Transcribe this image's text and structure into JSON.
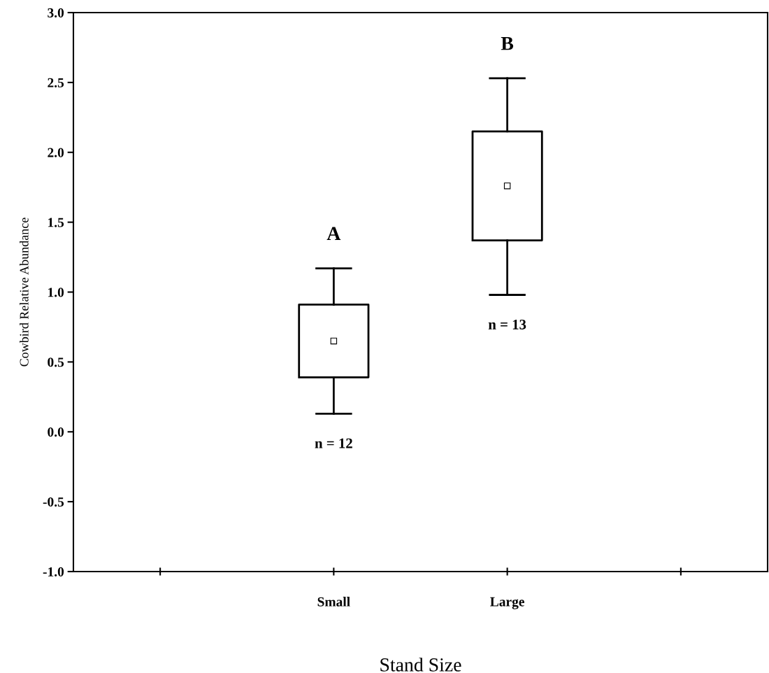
{
  "chart_data": {
    "type": "box",
    "xlabel": "Stand Size",
    "ylabel": "Cowbird Relative Abundance",
    "categories": [
      null,
      "Small",
      "Large",
      null
    ],
    "boxes": [
      null,
      {
        "low": 0.13,
        "q1": 0.39,
        "median": 0.65,
        "q3": 0.91,
        "high": 1.17
      },
      {
        "low": 0.98,
        "q1": 1.37,
        "median": 1.76,
        "q3": 2.15,
        "high": 2.53
      },
      null
    ],
    "ylim": [
      -1.0,
      3.0
    ],
    "yticks": [
      {
        "value": -1.0,
        "label": "-1.0"
      },
      {
        "value": -0.5,
        "label": "-0.5"
      },
      {
        "value": 0.0,
        "label": "0.0"
      },
      {
        "value": 0.5,
        "label": "0.5"
      },
      {
        "value": 1.0,
        "label": "1.0"
      },
      {
        "value": 1.5,
        "label": "1.5"
      },
      {
        "value": 2.0,
        "label": "2.0"
      },
      {
        "value": 2.5,
        "label": "2.5"
      },
      {
        "value": 3.0,
        "label": "3.0"
      }
    ],
    "annotations": [
      "A",
      "B",
      "n = 12",
      "n = 13"
    ],
    "grid": false,
    "legend": false
  }
}
